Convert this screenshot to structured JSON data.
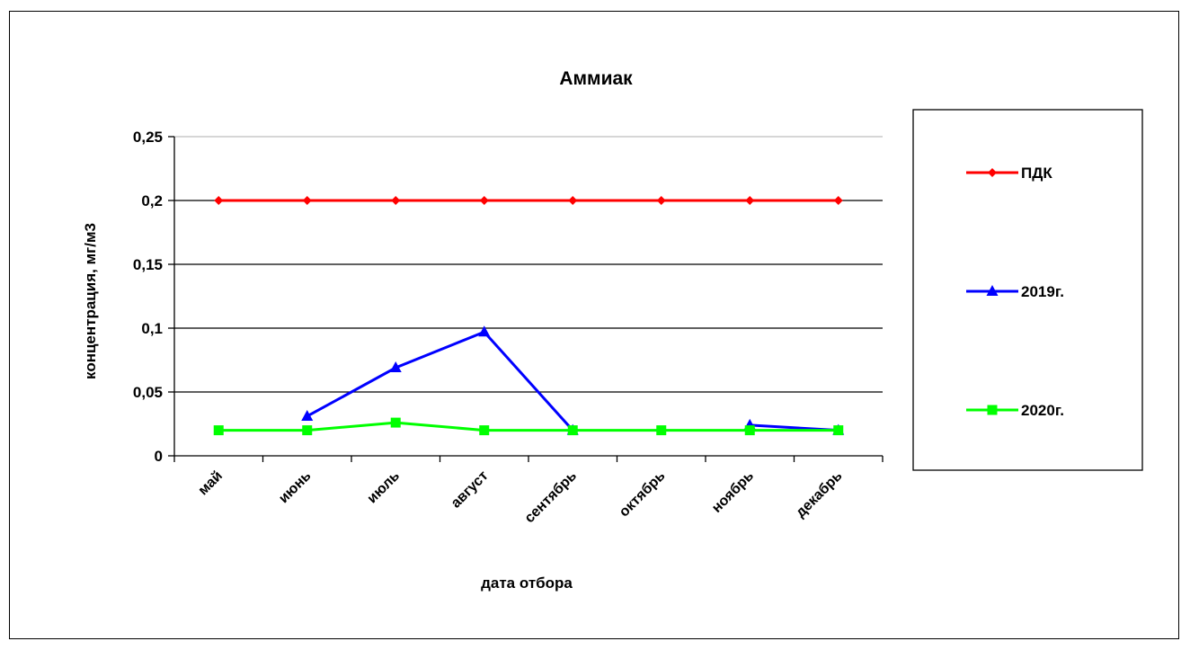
{
  "chart_data": {
    "type": "line",
    "title": "Аммиак",
    "xlabel": "дата отбора",
    "ylabel": "концентрация, мг/м3",
    "categories": [
      "май",
      "июнь",
      "июль",
      "август",
      "сентябрь",
      "октябрь",
      "ноябрь",
      "декабрь"
    ],
    "y_ticks": [
      "0",
      "0,05",
      "0,1",
      "0,15",
      "0,2",
      "0,25"
    ],
    "ylim": [
      0,
      0.25
    ],
    "grid": true,
    "legend_position": "right",
    "series": [
      {
        "name": "ПДК",
        "color": "#ff0000",
        "marker": "diamond",
        "values": [
          0.2,
          0.2,
          0.2,
          0.2,
          0.2,
          0.2,
          0.2,
          0.2
        ]
      },
      {
        "name": "2019г.",
        "color": "#0000ff",
        "marker": "triangle",
        "values": [
          null,
          0.031,
          0.069,
          0.097,
          0.02,
          null,
          0.024,
          0.02
        ]
      },
      {
        "name": "2020г.",
        "color": "#00ff00",
        "marker": "square",
        "values": [
          0.02,
          0.02,
          0.026,
          0.02,
          0.02,
          0.02,
          0.02,
          0.02
        ]
      }
    ]
  }
}
